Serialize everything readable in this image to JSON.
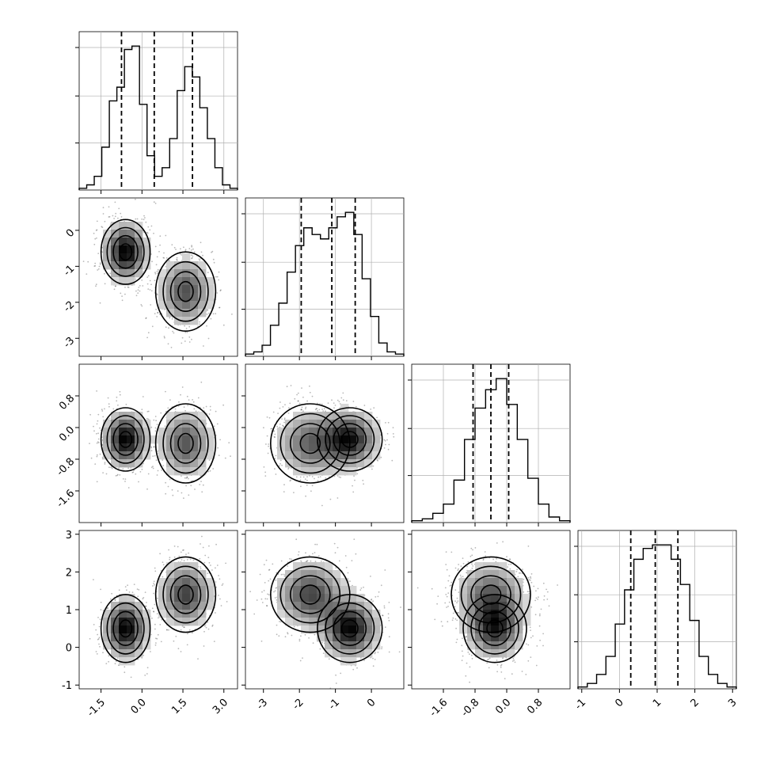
{
  "chart_data": {
    "type": "corner",
    "title": "",
    "grid": true,
    "colors": {
      "hist": "#000000",
      "contour": "#000000",
      "points": "#000000",
      "grid": "#b0b0b0",
      "background": "#ffffff"
    },
    "dims": [
      {
        "range": [
          -2.3,
          3.5
        ],
        "ticks": [
          "-1.5",
          "0.0",
          "1.5",
          "3.0"
        ],
        "tick_values": [
          -1.5,
          0.0,
          1.5,
          3.0
        ],
        "quantiles": [
          -0.75,
          0.45,
          1.85
        ],
        "hist_edges": [
          -2.3,
          3.5
        ],
        "hist_counts": [
          1,
          3,
          8,
          25,
          52,
          60,
          82,
          84,
          50,
          20,
          8,
          13,
          30,
          58,
          72,
          66,
          48,
          30,
          13,
          3,
          1
        ]
      },
      {
        "range": [
          -3.5,
          0.9
        ],
        "ticks": [
          "-3",
          "-2",
          "-1",
          "0"
        ],
        "tick_values": [
          -3,
          -2,
          -1,
          0
        ],
        "quantiles": [
          -1.95,
          -1.1,
          -0.45
        ],
        "hist_edges": [
          -3.5,
          0.9
        ],
        "hist_counts": [
          1,
          2,
          5,
          14,
          24,
          38,
          50,
          58,
          55,
          53,
          58,
          63,
          65,
          55,
          35,
          18,
          6,
          2,
          1
        ]
      },
      {
        "range": [
          -2.4,
          1.6
        ],
        "ticks": [
          "-1.6",
          "-0.8",
          "0.0",
          "0.8"
        ],
        "tick_values": [
          -1.6,
          -0.8,
          0.0,
          0.8
        ],
        "quantiles": [
          -0.85,
          -0.4,
          0.05
        ],
        "hist_edges": [
          -2.4,
          1.6
        ],
        "hist_counts": [
          1,
          2,
          5,
          10,
          23,
          45,
          62,
          72,
          78,
          64,
          45,
          24,
          10,
          3,
          1
        ]
      },
      {
        "range": [
          -1.1,
          3.1
        ],
        "ticks": [
          "-1",
          "0",
          "1",
          "2",
          "3"
        ],
        "tick_values": [
          -1,
          0,
          1,
          2,
          3
        ],
        "quantiles": [
          0.3,
          0.95,
          1.55
        ],
        "hist_edges": [
          -1.1,
          3.1
        ],
        "hist_counts": [
          1,
          3,
          8,
          18,
          36,
          55,
          72,
          78,
          80,
          80,
          72,
          58,
          38,
          18,
          8,
          3,
          1
        ]
      }
    ],
    "components": [
      {
        "weight": 0.5,
        "mean": [
          -0.6,
          -0.6,
          -0.3,
          0.5
        ],
        "sd": [
          0.45,
          0.45,
          0.4,
          0.45
        ]
      },
      {
        "weight": 0.5,
        "mean": [
          1.6,
          -1.7,
          -0.4,
          1.4
        ],
        "sd": [
          0.55,
          0.55,
          0.5,
          0.5
        ]
      }
    ]
  }
}
